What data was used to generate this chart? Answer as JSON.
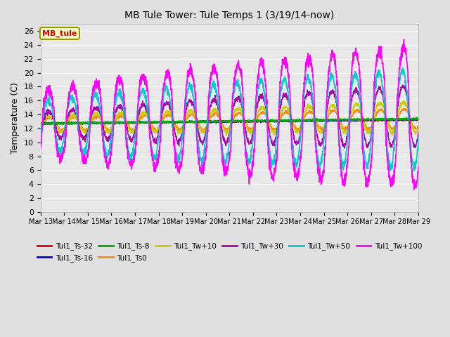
{
  "title": "MB Tule Tower: Tule Temps 1 (3/19/14-now)",
  "ylabel": "Temperature (C)",
  "ylim": [
    0,
    27
  ],
  "yticks": [
    0,
    2,
    4,
    6,
    8,
    10,
    12,
    14,
    16,
    18,
    20,
    22,
    24,
    26
  ],
  "background_color": "#e0e0e0",
  "plot_bg_color": "#e8e8e8",
  "grid_color": "white",
  "series_order": [
    "Tul1_Ts-32",
    "Tul1_Ts-16",
    "Tul1_Ts-8",
    "Tul1_Ts0",
    "Tul1_Tw+10",
    "Tul1_Tw+30",
    "Tul1_Tw+50",
    "Tul1_Tw+100"
  ],
  "series": {
    "Tul1_Ts-32": {
      "color": "#dd0000",
      "lw": 1.2,
      "zorder": 5
    },
    "Tul1_Ts-16": {
      "color": "#0000dd",
      "lw": 1.2,
      "zorder": 5
    },
    "Tul1_Ts-8": {
      "color": "#00aa00",
      "lw": 1.2,
      "zorder": 5
    },
    "Tul1_Ts0": {
      "color": "#ff8800",
      "lw": 1.0,
      "zorder": 4
    },
    "Tul1_Tw+10": {
      "color": "#cccc00",
      "lw": 1.0,
      "zorder": 4
    },
    "Tul1_Tw+30": {
      "color": "#aa00aa",
      "lw": 1.0,
      "zorder": 4
    },
    "Tul1_Tw+50": {
      "color": "#00cccc",
      "lw": 1.2,
      "zorder": 6
    },
    "Tul1_Tw+100": {
      "color": "#ff00ff",
      "lw": 1.2,
      "zorder": 7
    }
  },
  "legend_box_color": "#ffffcc",
  "legend_box_edge": "#999900",
  "legend_text": "MB_tule",
  "n_days": 16,
  "start_day": 13,
  "base_temp": 12.7,
  "base_trend": 0.03,
  "figsize": [
    6.4,
    4.8
  ],
  "dpi": 100
}
